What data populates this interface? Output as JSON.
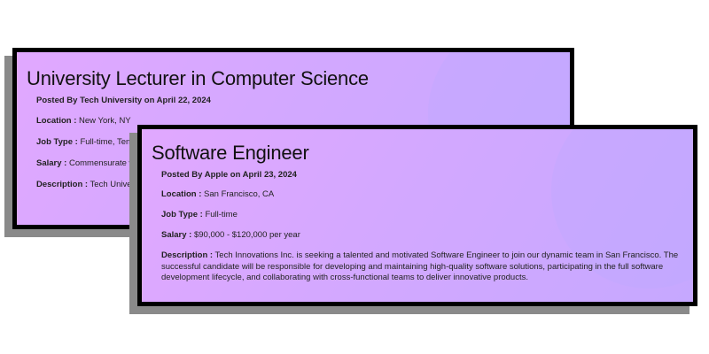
{
  "back_card": {
    "title": "University Lecturer in Computer Science",
    "posted": "Posted By Tech University on April 22, 2024",
    "location_label": "Location :",
    "location": "New York, NY",
    "job_type_label": "Job Type :",
    "job_type": "Full-time, Tenure",
    "salary_label": "Salary :",
    "salary": "Commensurate with",
    "description_label": "Description :",
    "description": "Tech University tenure-track University Lecturer science, conducting research"
  },
  "front_card": {
    "title": "Software Engineer",
    "posted": "Posted By Apple on April 23, 2024",
    "location_label": "Location :",
    "location": "San Francisco, CA",
    "job_type_label": "Job Type :",
    "job_type": "Full-time",
    "salary_label": "Salary :",
    "salary": "$90,000 - $120,000 per year",
    "description_label": "Description :",
    "description": "Tech Innovations Inc. is seeking a talented and motivated Software Engineer to join our dynamic team in San Francisco. The successful candidate will be responsible for developing and maintaining high-quality software solutions, participating in the full software development lifecycle, and collaborating with cross-functional teams to deliver innovative products."
  },
  "colors": {
    "card_gradient_start": "#e1a8ff",
    "card_gradient_end": "#c6a8ff",
    "border": "#000000",
    "shadow": "#8a8a8a"
  }
}
